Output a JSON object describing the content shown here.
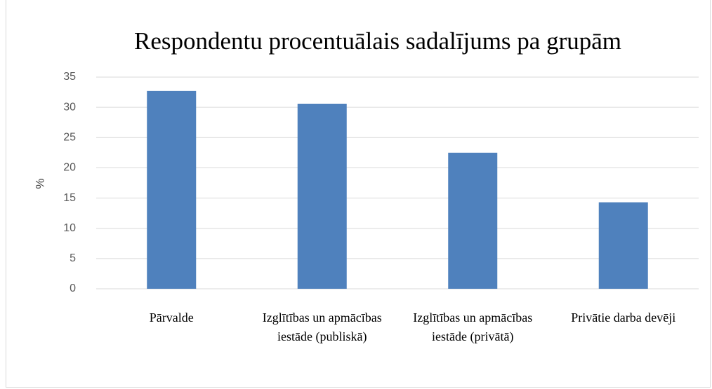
{
  "chart_data": {
    "type": "bar",
    "title": "Respondentu procentuālais sadalījums pa grupām",
    "y_label": "%",
    "categories": [
      "Pārvalde",
      "Izglītības un apmācības iestāde (publiskā)",
      "Izglītības un apmācības iestāde (privātā)",
      "Privātie darba devēji"
    ],
    "values": [
      32.7,
      30.6,
      22.5,
      14.3
    ],
    "color": "#4f81bd",
    "ylim": [
      0,
      35
    ],
    "yticks": [
      0,
      5,
      10,
      15,
      20,
      25,
      30,
      35
    ],
    "grid": true
  }
}
